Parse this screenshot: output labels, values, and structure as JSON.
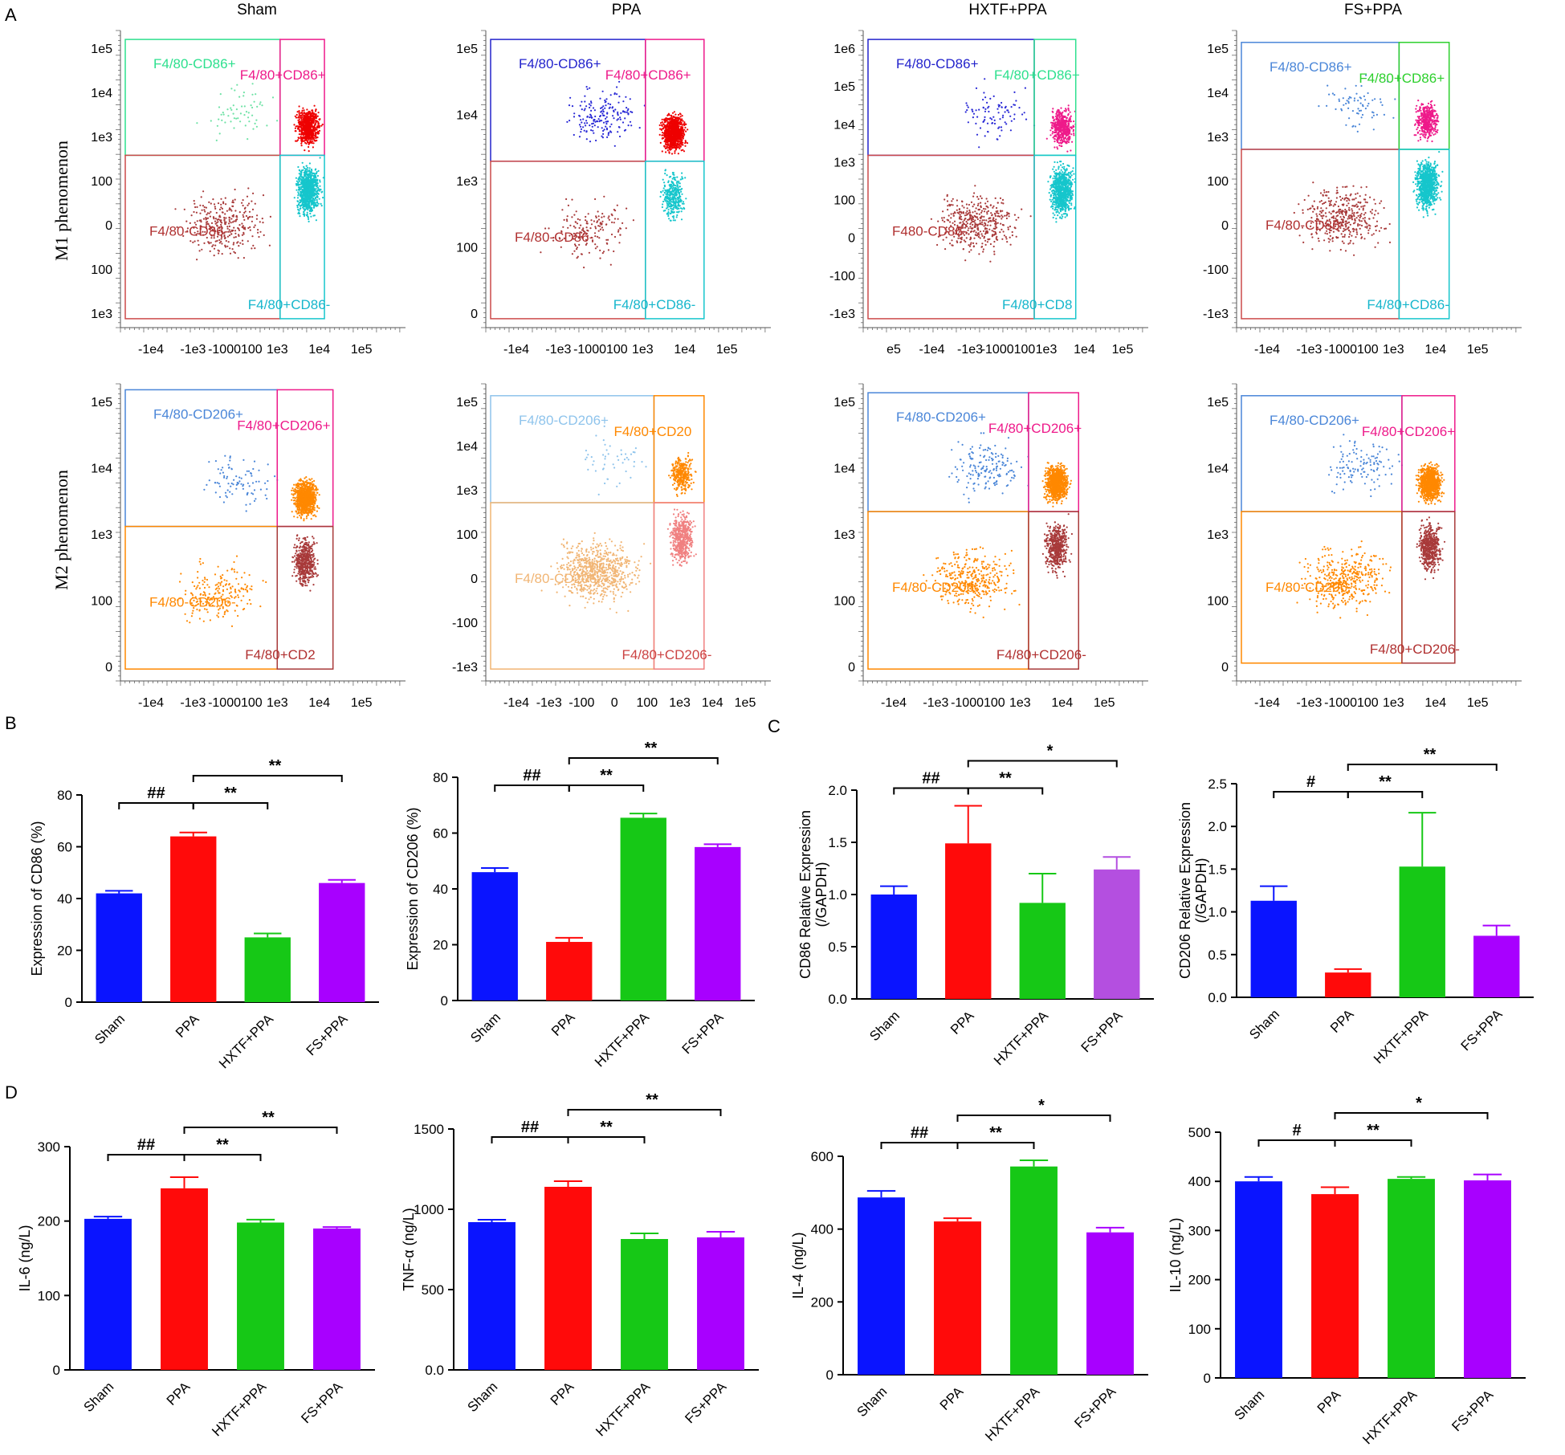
{
  "panels": {
    "A": "A",
    "B": "B",
    "C": "C",
    "D": "D"
  },
  "colors": {
    "blue": "#0a14ff",
    "red": "#ff0a0a",
    "green": "#16c816",
    "purple": "#a800ff",
    "lightPurple": "#b44fe0",
    "dotRed": "#ee0000",
    "dotCyan": "#16c6cc",
    "dotBrownRed": "#a83a3a",
    "dotMint": "#6fe2a6",
    "dotBlue": "#2a2ad6",
    "dotMagenta": "#ee1a8a",
    "dotOrange": "#ff8800",
    "dotSky": "#4a86d8",
    "dotLightOrange": "#f1b574",
    "dotSalmon": "#f08080",
    "dotPaleBlue": "#8fc4ec"
  },
  "flow": {
    "titles": [
      "Sham",
      "PPA",
      "HXTF+PPA",
      "FS+PPA"
    ],
    "rows": [
      "M1 phenomenon",
      "M2 phenomenon"
    ],
    "x_ticks": [
      [
        "-1e4",
        "-1e3",
        "-1000100",
        "1e3",
        "1e4",
        "1e5"
      ],
      [
        "-1e4",
        "-1e3",
        "-1000100",
        "1e3",
        "1e4",
        "1e5"
      ],
      [
        "e5",
        "-1e4",
        "-1e3",
        "-1000100",
        "1e3",
        "1e4",
        "1e5"
      ],
      [
        "-1e4",
        "-1e3",
        "-1000100",
        "1e3",
        "1e4",
        "1e5"
      ],
      [
        "-1e4",
        "-1e3",
        "-1000100",
        "1e3",
        "1e4",
        "1e5"
      ],
      [
        "-1e4",
        "-1e3",
        "-100",
        "0",
        "100",
        "1e3",
        "1e4",
        "1e5"
      ],
      [
        "-1e4",
        "-1e3",
        "-1000100",
        "1e3",
        "1e4",
        "1e5"
      ],
      [
        "-1e4",
        "-1e3",
        "-1000100",
        "1e3",
        "1e4",
        "1e5"
      ]
    ],
    "y_ticks": [
      [
        "1e5",
        "1e4",
        "1e3",
        "100",
        "0",
        "100",
        "1e3"
      ],
      [
        "1e5",
        "1e4",
        "1e3",
        "100",
        "0"
      ],
      [
        "1e6",
        "1e5",
        "1e4",
        "1e3",
        "100",
        "0",
        "-100",
        "-1e3"
      ],
      [
        "1e5",
        "1e4",
        "1e3",
        "100",
        "0",
        "-100",
        "-1e3"
      ],
      [
        "1e5",
        "1e4",
        "1e3",
        "100",
        "0"
      ],
      [
        "1e5",
        "1e4",
        "1e3",
        "100",
        "0",
        "-100",
        "-1e3"
      ],
      [
        "1e5",
        "1e4",
        "1e3",
        "100",
        "0"
      ],
      [
        "1e5",
        "1e4",
        "1e3",
        "100",
        "0"
      ]
    ],
    "gate_labels": [
      [
        "F4/80-CD86+",
        "F4/80+CD86+",
        "F4/80-CD86-",
        "F4/80+CD86-"
      ],
      [
        "F4/80-CD86+",
        "F4/80+CD86+",
        "F4/80-CD86-",
        "F4/80+CD86-"
      ],
      [
        "F4/80-CD86+",
        "F4/80+CD86+",
        "F480-CD86-",
        "F4/80+CD8"
      ],
      [
        "F4/80-CD86+",
        "F4/80+CD86+",
        "F4/80-CD86-",
        "F4/80+CD86-"
      ],
      [
        "F4/80-CD206+",
        "F4/80+CD206+",
        "F4/80-CD206-",
        "F4/80+CD2"
      ],
      [
        "F4/80-CD206+",
        "F4/80+CD20",
        "F4/80-CD206-",
        "F4/80+CD206-"
      ],
      [
        "F4/80-CD206+",
        "F4/80+CD206+",
        "F4/80-CD206-",
        "F4/80+CD206-"
      ],
      [
        "F4/80-CD206+",
        "F4/80+CD206+",
        "F4/80-CD206-",
        "F4/80+CD206-"
      ]
    ]
  },
  "chart_data": [
    {
      "id": "B1",
      "type": "bar",
      "categories": [
        "Sham",
        "PPA",
        "HXTF+PPA",
        "FS+PPA"
      ],
      "values": [
        42,
        64,
        25,
        46
      ],
      "errors": [
        1,
        1.5,
        1.5,
        1.2
      ],
      "ylabel": "Expression of CD86 (%)",
      "ylim": [
        0,
        80
      ],
      "yticks": [
        "0",
        "20",
        "40",
        "60",
        "80"
      ],
      "annotations": [
        {
          "from": 0,
          "to": 1,
          "text": "##"
        },
        {
          "from": 1,
          "to": 2,
          "text": "**"
        },
        {
          "from": 1,
          "to": 3,
          "text": "**"
        }
      ]
    },
    {
      "id": "B2",
      "type": "bar",
      "categories": [
        "Sham",
        "PPA",
        "HXTF+PPA",
        "FS+PPA"
      ],
      "values": [
        46,
        21,
        65.5,
        55
      ],
      "errors": [
        1.5,
        1.5,
        1.5,
        1
      ],
      "ylabel": "Expression of CD206 (%)",
      "ylim": [
        0,
        80
      ],
      "yticks": [
        "0",
        "20",
        "40",
        "60",
        "80"
      ],
      "annotations": [
        {
          "from": 0,
          "to": 1,
          "text": "##"
        },
        {
          "from": 1,
          "to": 2,
          "text": "**"
        },
        {
          "from": 1,
          "to": 3,
          "text": "**"
        }
      ]
    },
    {
      "id": "C1",
      "type": "bar",
      "categories": [
        "Sham",
        "PPA",
        "HXTF+PPA",
        "FS+PPA"
      ],
      "values": [
        1.0,
        1.49,
        0.92,
        1.24
      ],
      "errors": [
        0.08,
        0.36,
        0.28,
        0.12
      ],
      "ylabel": "CD86 Relative Expression",
      "ylabel2": "(/GAPDH)",
      "ylim": [
        0,
        2.0
      ],
      "yticks": [
        "0.0",
        "0.5",
        "1.0",
        "1.5",
        "2.0"
      ],
      "barColors": [
        "blue",
        "red",
        "green",
        "lightPurple"
      ],
      "annotations": [
        {
          "from": 0,
          "to": 1,
          "text": "##"
        },
        {
          "from": 1,
          "to": 2,
          "text": "**"
        },
        {
          "from": 1,
          "to": 3,
          "text": "*"
        }
      ]
    },
    {
      "id": "C2",
      "type": "bar",
      "categories": [
        "Sham",
        "PPA",
        "HXTF+PPA",
        "FS+PPA"
      ],
      "values": [
        1.13,
        0.29,
        1.53,
        0.72
      ],
      "errors": [
        0.17,
        0.04,
        0.63,
        0.12
      ],
      "ylabel": "CD206 Relative Expression",
      "ylabel2": "(/GAPDH)",
      "ylim": [
        0,
        2.5
      ],
      "yticks": [
        "0.0",
        "0.5",
        "1.0",
        "1.5",
        "2.0",
        "2.5"
      ],
      "annotations": [
        {
          "from": 0,
          "to": 1,
          "text": "#"
        },
        {
          "from": 1,
          "to": 2,
          "text": "**"
        },
        {
          "from": 1,
          "to": 3,
          "text": "**"
        }
      ]
    },
    {
      "id": "D1",
      "type": "bar",
      "categories": [
        "Sham",
        "PPA",
        "HXTF+PPA",
        "FS+PPA"
      ],
      "values": [
        203,
        244,
        198,
        190
      ],
      "errors": [
        3,
        15,
        4,
        2
      ],
      "ylabel": "IL-6 (ng/L)",
      "ylim": [
        0,
        300
      ],
      "yticks": [
        "0",
        "100",
        "200",
        "300"
      ],
      "annotations": [
        {
          "from": 0,
          "to": 1,
          "text": "##"
        },
        {
          "from": 1,
          "to": 2,
          "text": "**"
        },
        {
          "from": 1,
          "to": 3,
          "text": "**"
        }
      ]
    },
    {
      "id": "D2",
      "type": "bar",
      "categories": [
        "Sham",
        "PPA",
        "HXTF+PPA",
        "FS+PPA"
      ],
      "values": [
        920,
        1140,
        815,
        825
      ],
      "errors": [
        15,
        35,
        35,
        35
      ],
      "ylabel": "TNF-α (ng/L)",
      "ylim": [
        0,
        1500
      ],
      "yticks": [
        "0.0",
        "500",
        "1000",
        "1500"
      ],
      "annotations": [
        {
          "from": 0,
          "to": 1,
          "text": "##"
        },
        {
          "from": 1,
          "to": 2,
          "text": "**"
        },
        {
          "from": 1,
          "to": 3,
          "text": "**"
        }
      ]
    },
    {
      "id": "D3",
      "type": "bar",
      "categories": [
        "Sham",
        "PPA",
        "HXTF+PPA",
        "FS+PPA"
      ],
      "values": [
        487,
        421,
        572,
        391
      ],
      "errors": [
        18,
        9,
        17,
        13
      ],
      "ylabel": "IL-4 (ng/L)",
      "ylim": [
        0,
        600
      ],
      "yticks": [
        "0",
        "200",
        "400",
        "600"
      ],
      "annotations": [
        {
          "from": 0,
          "to": 1,
          "text": "##"
        },
        {
          "from": 1,
          "to": 2,
          "text": "**"
        },
        {
          "from": 1,
          "to": 3,
          "text": "*"
        }
      ]
    },
    {
      "id": "D4",
      "type": "bar",
      "categories": [
        "Sham",
        "PPA",
        "HXTF+PPA",
        "FS+PPA"
      ],
      "values": [
        400,
        374,
        405,
        402
      ],
      "errors": [
        9,
        14,
        4,
        12
      ],
      "ylabel": "IL-10 (ng/L)",
      "ylim": [
        0,
        500
      ],
      "yticks": [
        "0",
        "100",
        "200",
        "300",
        "400",
        "500"
      ],
      "annotations": [
        {
          "from": 0,
          "to": 1,
          "text": "#"
        },
        {
          "from": 1,
          "to": 2,
          "text": "**"
        },
        {
          "from": 1,
          "to": 3,
          "text": "*"
        }
      ]
    }
  ]
}
